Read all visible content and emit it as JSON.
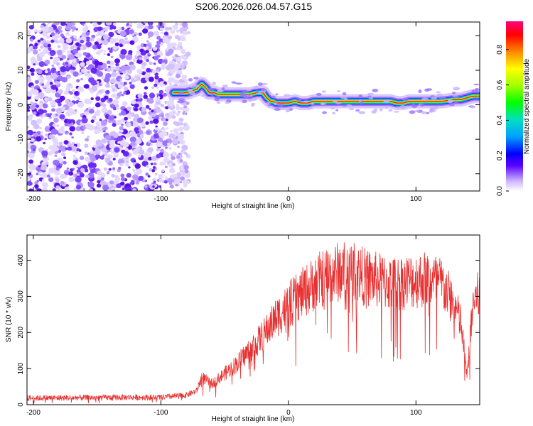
{
  "title": "S206.2026.026.04.57.G15",
  "chart_data": [
    {
      "type": "heatmap",
      "name": "spectrogram",
      "xlabel": "Height of straight line (km)",
      "ylabel": "Frequency (Hz)",
      "xlim": [
        -205,
        150
      ],
      "ylim": [
        -25,
        24
      ],
      "xticks": [
        -200,
        -100,
        0,
        100
      ],
      "yticks": [
        -20,
        -10,
        0,
        10,
        20
      ],
      "colorbar": {
        "label": "Normalized spectral amplitude",
        "range": [
          0.0,
          0.96
        ],
        "ticks": [
          0.0,
          0.2,
          0.4,
          0.6,
          0.8
        ]
      },
      "noise_region_x": [
        -205,
        -78
      ],
      "ridge": {
        "x": [
          -90,
          -80,
          -72,
          -68,
          -65,
          -62,
          -58,
          -55,
          -50,
          -45,
          -40,
          -35,
          -30,
          -25,
          -20,
          -17,
          -14,
          -12,
          -10,
          -5,
          0,
          5,
          10,
          15,
          20,
          30,
          40,
          50,
          60,
          70,
          80,
          85,
          90,
          95,
          100,
          110,
          120,
          130,
          135,
          140,
          145,
          150
        ],
        "freq": [
          3.5,
          3.5,
          4.5,
          6,
          5,
          3.5,
          3.5,
          3,
          3,
          3,
          3,
          3,
          3,
          3.5,
          3.5,
          2,
          1,
          1,
          0.5,
          0.5,
          0.5,
          1,
          0.5,
          0.5,
          1,
          1,
          1,
          1,
          1,
          1,
          1,
          0.5,
          0.5,
          1,
          1,
          1,
          1,
          1.5,
          1.5,
          2,
          2.5,
          2.5
        ]
      }
    },
    {
      "type": "line",
      "name": "snr",
      "xlabel": "Height of straight line (km)",
      "ylabel": "SNR (10 * v/v)",
      "xlim": [
        -205,
        150
      ],
      "ylim": [
        0,
        470
      ],
      "xticks": [
        -200,
        -100,
        0,
        100
      ],
      "yticks": [
        0,
        100,
        200,
        300,
        400
      ],
      "color": "#e83030",
      "envelope": {
        "x": [
          -205,
          -120,
          -100,
          -80,
          -72,
          -68,
          -60,
          -50,
          -40,
          -30,
          -20,
          -10,
          0,
          10,
          20,
          30,
          40,
          50,
          60,
          70,
          80,
          90,
          100,
          110,
          120,
          125,
          130,
          135,
          138,
          140,
          142,
          145,
          150
        ],
        "y": [
          20,
          22,
          22,
          28,
          40,
          80,
          60,
          90,
          120,
          160,
          200,
          250,
          290,
          320,
          350,
          375,
          385,
          390,
          370,
          360,
          350,
          355,
          360,
          365,
          350,
          320,
          290,
          240,
          150,
          80,
          170,
          300,
          320
        ]
      }
    }
  ]
}
